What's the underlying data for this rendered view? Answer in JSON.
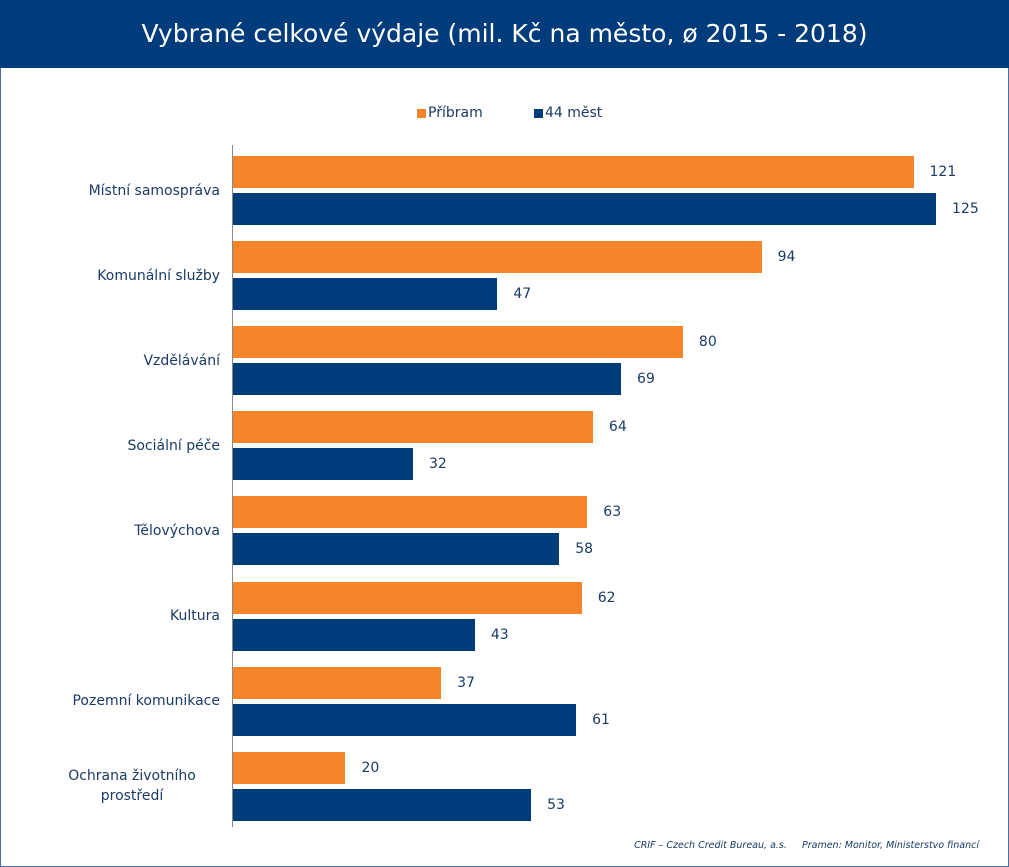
{
  "chart_data": {
    "type": "bar",
    "orientation": "horizontal",
    "title": "Vybrané celkové výdaje (mil. Kč na město, ø 2015 - 2018)",
    "categories": [
      "Místní samospráva",
      "Komunální služby",
      "Vzdělávání",
      "Sociální péče",
      "Tělovýchova",
      "Kultura",
      "Pozemní komunikace",
      "Ochrana životního prostředí"
    ],
    "series": [
      {
        "name": "Příbram",
        "color": "#f5842a",
        "values": [
          121,
          94,
          80,
          64,
          63,
          62,
          37,
          20
        ]
      },
      {
        "name": "44 měst",
        "color": "#003b7b",
        "values": [
          125,
          47,
          69,
          32,
          58,
          43,
          61,
          53
        ]
      }
    ],
    "legend": "top",
    "source_note": "CRIF – Czech Credit Bureau, a.s.",
    "source": "Pramen: Monitor, Ministerstvo financí"
  }
}
